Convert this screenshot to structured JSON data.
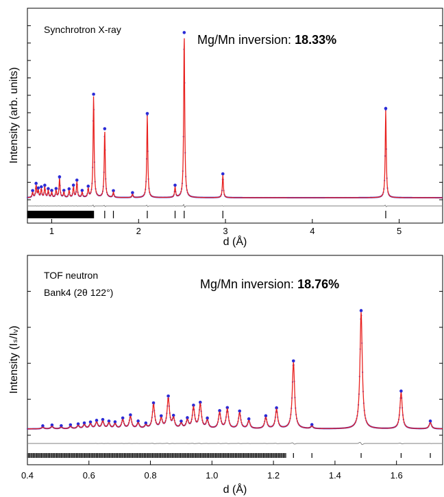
{
  "colors": {
    "observed": "#2b2bd6",
    "calculated": "#e8201e",
    "difference": "#808080",
    "ticks": "#000000"
  },
  "chart_data": [
    {
      "type": "scatter",
      "title": "Synchrotron X-ray",
      "annotation_prefix": "Mg/Mn inversion: ",
      "annotation_value": "18.33%",
      "xlabel": "d (Å)",
      "ylabel": "Intensity (arb. units)",
      "xlim": [
        0.72,
        5.5
      ],
      "ylim": [
        0,
        1.0
      ],
      "x_ticks": [
        1,
        2,
        3,
        4,
        5
      ],
      "x_tick_labels": [
        "1",
        "2",
        "3",
        "4",
        "5"
      ],
      "peak_width": 0.007,
      "background": 0.012,
      "peaks": [
        {
          "d": 0.78,
          "h": 0.03
        },
        {
          "d": 0.82,
          "h": 0.07
        },
        {
          "d": 0.845,
          "h": 0.04
        },
        {
          "d": 0.88,
          "h": 0.05
        },
        {
          "d": 0.92,
          "h": 0.06
        },
        {
          "d": 0.96,
          "h": 0.04
        },
        {
          "d": 1.0,
          "h": 0.03
        },
        {
          "d": 1.05,
          "h": 0.04
        },
        {
          "d": 1.09,
          "h": 0.11
        },
        {
          "d": 1.14,
          "h": 0.03
        },
        {
          "d": 1.2,
          "h": 0.04
        },
        {
          "d": 1.25,
          "h": 0.06
        },
        {
          "d": 1.29,
          "h": 0.09
        },
        {
          "d": 1.35,
          "h": 0.03
        },
        {
          "d": 1.42,
          "h": 0.05
        },
        {
          "d": 1.482,
          "h": 0.59
        },
        {
          "d": 1.61,
          "h": 0.39
        },
        {
          "d": 1.71,
          "h": 0.03
        },
        {
          "d": 1.93,
          "h": 0.02
        },
        {
          "d": 2.1,
          "h": 0.48
        },
        {
          "d": 2.42,
          "h": 0.06
        },
        {
          "d": 2.525,
          "h": 0.95
        },
        {
          "d": 2.97,
          "h": 0.13
        },
        {
          "d": 4.845,
          "h": 0.51
        }
      ],
      "reflections": [
        0.74,
        0.755,
        0.77,
        0.785,
        0.8,
        0.815,
        0.83,
        0.845,
        0.86,
        0.875,
        0.89,
        0.905,
        0.92,
        0.935,
        0.95,
        0.965,
        0.98,
        1.0,
        1.02,
        1.05,
        1.07,
        1.09,
        1.12,
        1.14,
        1.17,
        1.2,
        1.25,
        1.29,
        1.35,
        1.42,
        1.482,
        1.61,
        1.71,
        2.1,
        2.42,
        2.525,
        2.97,
        4.845
      ]
    },
    {
      "type": "scatter",
      "title": "TOF neutron",
      "subtitle": "Bank4 (2θ 122°)",
      "annotation_prefix": "Mg/Mn inversion: ",
      "annotation_value": "18.76%",
      "xlabel": "d (Å)",
      "ylabel": "Intensity (Iₛ/Iᵥ)",
      "xlim": [
        0.4,
        1.75
      ],
      "ylim": [
        0,
        1.0
      ],
      "x_ticks": [
        0.4,
        0.6,
        0.8,
        1.0,
        1.2,
        1.4,
        1.6
      ],
      "x_tick_labels": [
        "0.4",
        "0.6",
        "0.8",
        "1.0",
        "1.2",
        "1.4",
        "1.6"
      ],
      "peak_width": 0.0045,
      "background": 0.04,
      "peaks": [
        {
          "d": 0.45,
          "h": 0.01
        },
        {
          "d": 0.48,
          "h": 0.015
        },
        {
          "d": 0.51,
          "h": 0.01
        },
        {
          "d": 0.54,
          "h": 0.015
        },
        {
          "d": 0.565,
          "h": 0.02
        },
        {
          "d": 0.585,
          "h": 0.025
        },
        {
          "d": 0.605,
          "h": 0.03
        },
        {
          "d": 0.625,
          "h": 0.04
        },
        {
          "d": 0.645,
          "h": 0.045
        },
        {
          "d": 0.665,
          "h": 0.035
        },
        {
          "d": 0.685,
          "h": 0.03
        },
        {
          "d": 0.71,
          "h": 0.055
        },
        {
          "d": 0.735,
          "h": 0.075
        },
        {
          "d": 0.76,
          "h": 0.035
        },
        {
          "d": 0.785,
          "h": 0.02
        },
        {
          "d": 0.81,
          "h": 0.15
        },
        {
          "d": 0.835,
          "h": 0.06
        },
        {
          "d": 0.858,
          "h": 0.19
        },
        {
          "d": 0.875,
          "h": 0.06
        },
        {
          "d": 0.9,
          "h": 0.03
        },
        {
          "d": 0.92,
          "h": 0.05
        },
        {
          "d": 0.94,
          "h": 0.13
        },
        {
          "d": 0.962,
          "h": 0.15
        },
        {
          "d": 0.985,
          "h": 0.05
        },
        {
          "d": 1.025,
          "h": 0.1
        },
        {
          "d": 1.05,
          "h": 0.12
        },
        {
          "d": 1.09,
          "h": 0.1
        },
        {
          "d": 1.12,
          "h": 0.05
        },
        {
          "d": 1.175,
          "h": 0.07
        },
        {
          "d": 1.21,
          "h": 0.12
        },
        {
          "d": 1.265,
          "h": 0.42
        },
        {
          "d": 1.325,
          "h": 0.015
        },
        {
          "d": 1.485,
          "h": 0.74
        },
        {
          "d": 1.615,
          "h": 0.23
        },
        {
          "d": 1.71,
          "h": 0.04
        }
      ],
      "reflections": [
        1.265,
        1.325,
        1.485,
        1.615,
        1.71
      ]
    }
  ]
}
